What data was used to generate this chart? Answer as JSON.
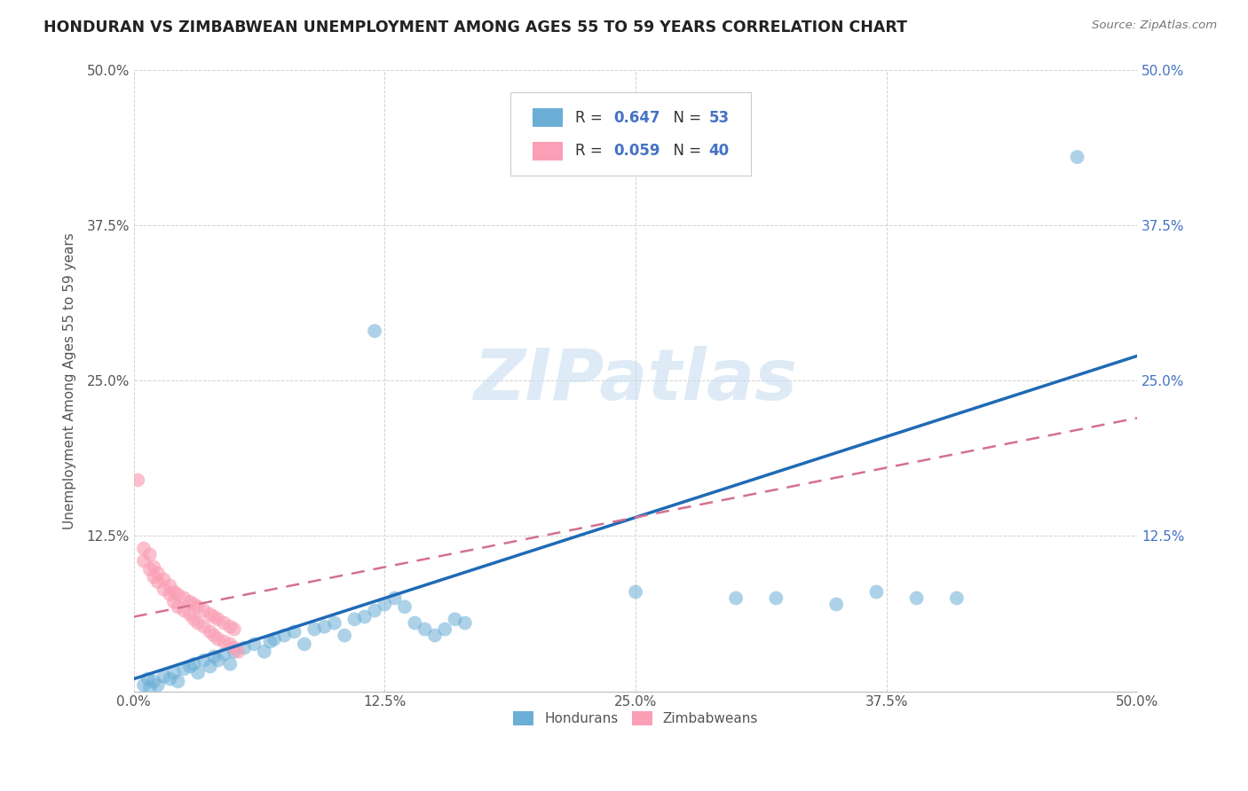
{
  "title": "HONDURAN VS ZIMBABWEAN UNEMPLOYMENT AMONG AGES 55 TO 59 YEARS CORRELATION CHART",
  "source": "Source: ZipAtlas.com",
  "ylabel": "Unemployment Among Ages 55 to 59 years",
  "xlim": [
    0,
    0.5
  ],
  "ylim": [
    0,
    0.5
  ],
  "xtick_vals": [
    0,
    0.125,
    0.25,
    0.375,
    0.5
  ],
  "xtick_labels": [
    "0.0%",
    "12.5%",
    "25.0%",
    "37.5%",
    "50.0%"
  ],
  "ytick_vals": [
    0,
    0.125,
    0.25,
    0.375,
    0.5
  ],
  "ytick_labels": [
    "",
    "12.5%",
    "25.0%",
    "37.5%",
    "50.0%"
  ],
  "right_ytick_vals": [
    0.125,
    0.25,
    0.375,
    0.5
  ],
  "right_ytick_labels": [
    "12.5%",
    "25.0%",
    "37.5%",
    "50.0%"
  ],
  "honduran_color": "#6baed6",
  "zimbabwean_color": "#fa9fb5",
  "honduran_line_color": "#1f6ab5",
  "zimbabwean_line_color": "#d47090",
  "honduran_R": "0.647",
  "honduran_N": "53",
  "zimbabwean_R": "0.059",
  "zimbabwean_N": "40",
  "legend_text_color": "#4472c4",
  "watermark_text": "ZIPatlas",
  "watermark_color": "#c8dff0",
  "honduran_points": [
    [
      0.005,
      0.005
    ],
    [
      0.007,
      0.01
    ],
    [
      0.008,
      0.003
    ],
    [
      0.01,
      0.008
    ],
    [
      0.012,
      0.005
    ],
    [
      0.015,
      0.012
    ],
    [
      0.018,
      0.01
    ],
    [
      0.02,
      0.015
    ],
    [
      0.022,
      0.008
    ],
    [
      0.025,
      0.018
    ],
    [
      0.028,
      0.02
    ],
    [
      0.03,
      0.022
    ],
    [
      0.032,
      0.015
    ],
    [
      0.035,
      0.025
    ],
    [
      0.038,
      0.02
    ],
    [
      0.04,
      0.028
    ],
    [
      0.042,
      0.025
    ],
    [
      0.045,
      0.03
    ],
    [
      0.048,
      0.022
    ],
    [
      0.05,
      0.032
    ],
    [
      0.055,
      0.035
    ],
    [
      0.06,
      0.038
    ],
    [
      0.065,
      0.032
    ],
    [
      0.068,
      0.04
    ],
    [
      0.07,
      0.042
    ],
    [
      0.075,
      0.045
    ],
    [
      0.08,
      0.048
    ],
    [
      0.085,
      0.038
    ],
    [
      0.09,
      0.05
    ],
    [
      0.095,
      0.052
    ],
    [
      0.1,
      0.055
    ],
    [
      0.105,
      0.045
    ],
    [
      0.11,
      0.058
    ],
    [
      0.115,
      0.06
    ],
    [
      0.12,
      0.065
    ],
    [
      0.125,
      0.07
    ],
    [
      0.13,
      0.075
    ],
    [
      0.135,
      0.068
    ],
    [
      0.14,
      0.055
    ],
    [
      0.145,
      0.05
    ],
    [
      0.15,
      0.045
    ],
    [
      0.155,
      0.05
    ],
    [
      0.16,
      0.058
    ],
    [
      0.165,
      0.055
    ],
    [
      0.25,
      0.08
    ],
    [
      0.3,
      0.075
    ],
    [
      0.32,
      0.075
    ],
    [
      0.35,
      0.07
    ],
    [
      0.37,
      0.08
    ],
    [
      0.39,
      0.075
    ],
    [
      0.41,
      0.075
    ],
    [
      0.47,
      0.43
    ],
    [
      0.12,
      0.29
    ]
  ],
  "zimbabwean_points": [
    [
      0.002,
      0.17
    ],
    [
      0.005,
      0.115
    ],
    [
      0.008,
      0.11
    ],
    [
      0.01,
      0.1
    ],
    [
      0.012,
      0.095
    ],
    [
      0.015,
      0.09
    ],
    [
      0.018,
      0.085
    ],
    [
      0.02,
      0.08
    ],
    [
      0.022,
      0.078
    ],
    [
      0.025,
      0.075
    ],
    [
      0.028,
      0.072
    ],
    [
      0.03,
      0.07
    ],
    [
      0.032,
      0.068
    ],
    [
      0.035,
      0.065
    ],
    [
      0.038,
      0.062
    ],
    [
      0.04,
      0.06
    ],
    [
      0.042,
      0.058
    ],
    [
      0.045,
      0.055
    ],
    [
      0.048,
      0.052
    ],
    [
      0.05,
      0.05
    ],
    [
      0.005,
      0.105
    ],
    [
      0.008,
      0.098
    ],
    [
      0.01,
      0.092
    ],
    [
      0.012,
      0.088
    ],
    [
      0.015,
      0.082
    ],
    [
      0.018,
      0.078
    ],
    [
      0.02,
      0.072
    ],
    [
      0.022,
      0.068
    ],
    [
      0.025,
      0.065
    ],
    [
      0.028,
      0.062
    ],
    [
      0.03,
      0.058
    ],
    [
      0.032,
      0.055
    ],
    [
      0.035,
      0.052
    ],
    [
      0.038,
      0.048
    ],
    [
      0.04,
      0.045
    ],
    [
      0.042,
      0.042
    ],
    [
      0.045,
      0.04
    ],
    [
      0.048,
      0.038
    ],
    [
      0.05,
      0.035
    ],
    [
      0.052,
      0.032
    ]
  ]
}
